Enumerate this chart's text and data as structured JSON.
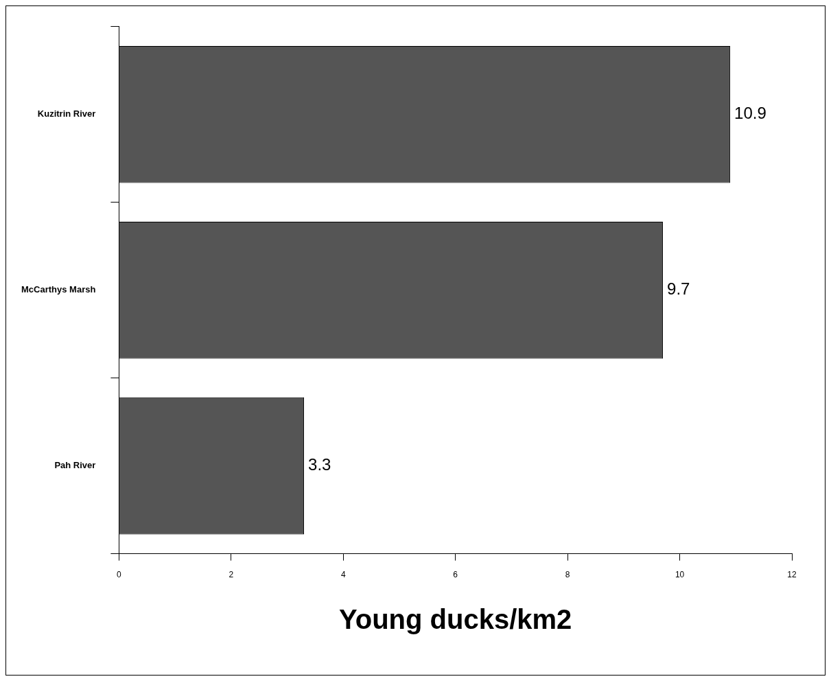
{
  "chart_data": {
    "type": "bar",
    "orientation": "horizontal",
    "categories": [
      "Kuzitrin River",
      "McCarthys Marsh",
      "Pah River"
    ],
    "values": [
      10.9,
      9.7,
      3.3
    ],
    "color": "#555555",
    "xlabel": "Young ducks/km2",
    "xlim": [
      0,
      12
    ],
    "xticks": [
      0,
      2,
      4,
      6,
      8,
      10,
      12
    ],
    "data_labels": true,
    "grid": false,
    "legend": false
  }
}
